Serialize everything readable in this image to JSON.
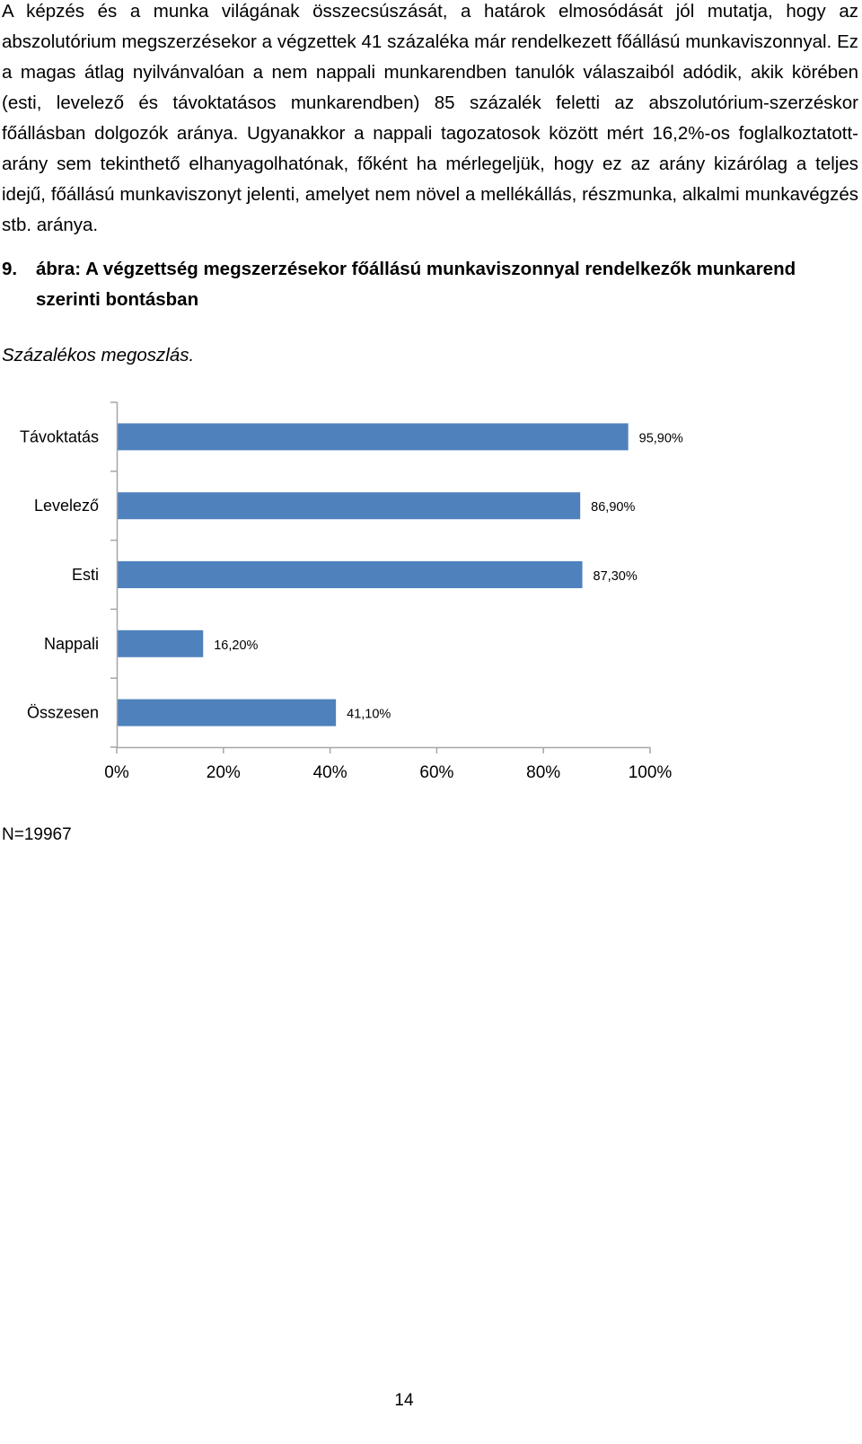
{
  "body_text": "A képzés és a munka világának összecsúszását, a határok elmosódását jól mutatja, hogy az abszolutórium megszerzésekor a végzettek 41 százaléka már rendelkezett főállású munkaviszonnyal. Ez a magas átlag nyilvánvalóan a nem nappali munkarendben tanulók válaszaiból adódik, akik körében (esti, levelező és távoktatásos munkarendben) 85 százalék feletti az abszolutórium-szerzéskor főállásban dolgozók aránya. Ugyanakkor a nappali tagozatosok között mért 16,2%-os foglalkoztatott-arány sem tekinthető elhanyagolhatónak, főként ha mérlegeljük, hogy ez az arány kizárólag a teljes idejű, főállású munkaviszonyt jelenti, amelyet nem növel a mellékállás, részmunka, alkalmi munkavégzés stb. aránya.",
  "figure": {
    "number": "9.",
    "title": "ábra: A végzettség megszerzésekor főállású munkaviszonnyal rendelkezők munkarend szerinti bontásban",
    "subtitle": "Százalékos megoszlás."
  },
  "chart_data": {
    "type": "bar",
    "orientation": "horizontal",
    "categories": [
      "Távoktatás",
      "Levelező",
      "Esti",
      "Nappali",
      "Összesen"
    ],
    "values": [
      95.9,
      86.9,
      87.3,
      16.2,
      41.1
    ],
    "value_labels": [
      "95,90%",
      "86,90%",
      "87,30%",
      "16,20%",
      "41,10%"
    ],
    "xlim": [
      0,
      100
    ],
    "ticks": [
      0,
      20,
      40,
      60,
      80,
      100
    ],
    "tick_labels": [
      "0%",
      "20%",
      "40%",
      "60%",
      "80%",
      "100%"
    ],
    "bar_color": "#4f81bd",
    "axis_color": "#a6a6a6",
    "grid": false,
    "legend": "none",
    "title": "",
    "xlabel": "",
    "ylabel": ""
  },
  "note": "N=19967",
  "page_number": "14"
}
